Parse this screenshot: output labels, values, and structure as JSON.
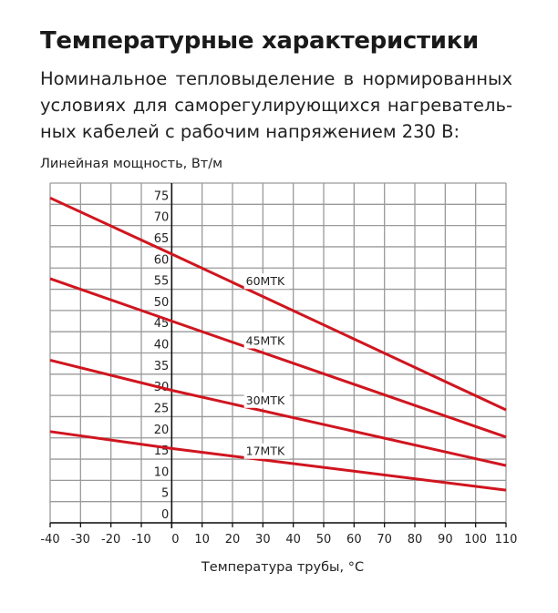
{
  "header": {
    "title": "Температурные характеристики",
    "subtitle": "Номинальное тепловыделение в нормированных условиях для саморегулирующихся нагреватель-ных кабелей с рабочим напряжением 230 В:"
  },
  "colors": {
    "line": "#d0151f",
    "grid": "#9a9a9a",
    "axis": "#111111"
  },
  "chart_data": {
    "type": "line",
    "title": "Температурные характеристики",
    "xlabel": "Температура трубы, °C",
    "ylabel": "Линейная мощность, Вт/м",
    "xlim": [
      -40,
      110
    ],
    "ylim": [
      0,
      80
    ],
    "grid": true,
    "x_ticks": [
      -40,
      -30,
      -20,
      -10,
      0,
      10,
      20,
      30,
      40,
      50,
      60,
      70,
      80,
      90,
      100,
      110
    ],
    "y_ticks": [
      0,
      5,
      10,
      15,
      20,
      25,
      30,
      35,
      40,
      45,
      50,
      55,
      60,
      65,
      70,
      75
    ],
    "x": [
      -40,
      0,
      110
    ],
    "series": [
      {
        "name": "60MTK",
        "values": [
          76.5,
          63.3,
          26.6
        ],
        "label_pos": [
          25,
          57
        ]
      },
      {
        "name": "45MTK",
        "values": [
          57.5,
          47.5,
          20.2
        ],
        "label_pos": [
          25,
          43
        ]
      },
      {
        "name": "30MTK",
        "values": [
          38.3,
          31.2,
          13.5
        ],
        "label_pos": [
          25,
          29
        ]
      },
      {
        "name": "17MTK",
        "values": [
          21.5,
          17.5,
          7.7
        ],
        "label_pos": [
          25,
          17
        ]
      }
    ]
  }
}
